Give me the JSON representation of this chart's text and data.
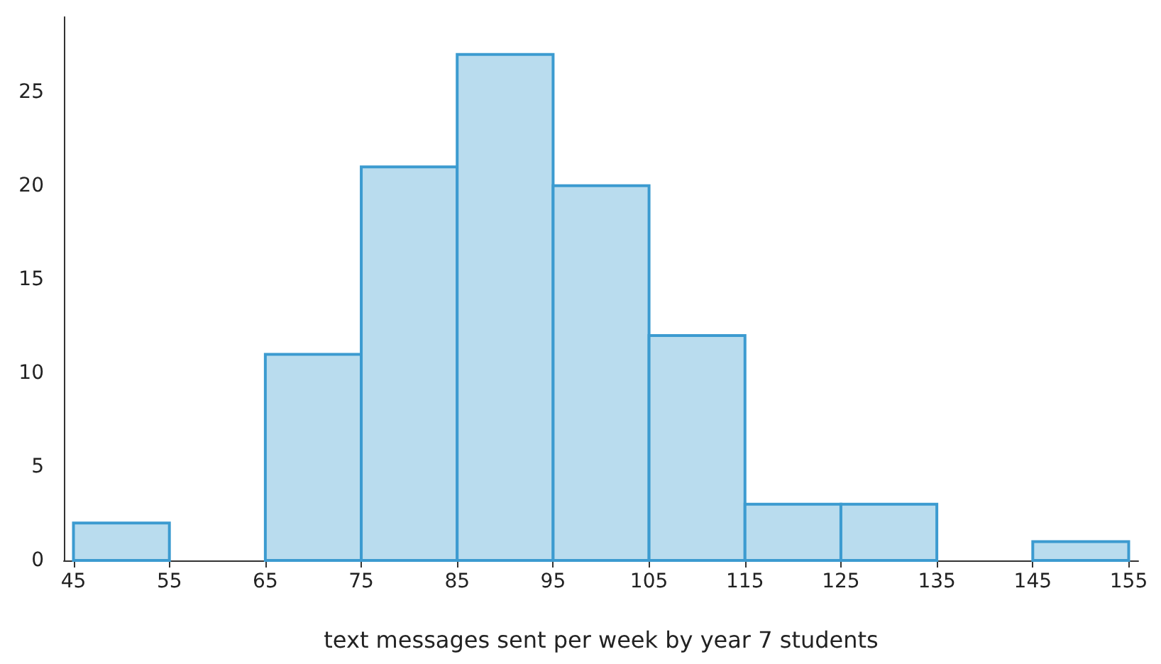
{
  "chart_data": {
    "type": "histogram",
    "xlabel": "text messages sent per week by year 7 students",
    "bins": [
      45,
      55,
      65,
      75,
      85,
      95,
      105,
      115,
      125,
      135,
      145,
      155
    ],
    "values": [
      2,
      0,
      11,
      21,
      27,
      20,
      12,
      3,
      3,
      0,
      1
    ],
    "color": "#b9dcee",
    "xlim": [
      44,
      156
    ],
    "xticks": [
      45,
      55,
      65,
      75,
      85,
      95,
      105,
      115,
      125,
      135,
      145,
      155
    ],
    "ylim": [
      0,
      29
    ],
    "yticks": [
      0,
      5,
      10,
      15,
      20,
      25
    ],
    "grid": false
  }
}
